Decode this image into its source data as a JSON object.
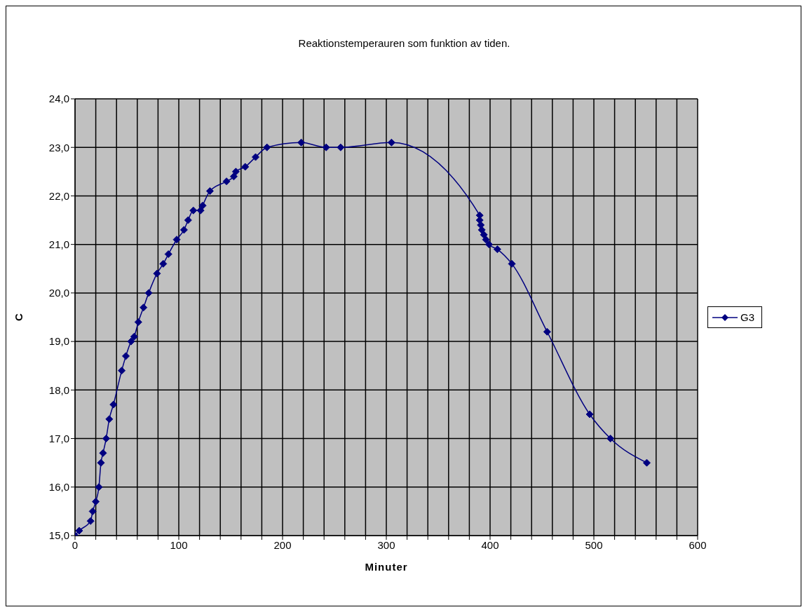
{
  "chart_data": {
    "type": "line",
    "title": "Reaktionstemperauren som  funktion av tiden.",
    "xlabel": "Minuter",
    "ylabel": "C",
    "x": [
      0,
      4,
      15,
      17,
      20,
      23,
      25,
      27,
      30,
      33,
      37,
      45,
      49,
      54,
      57,
      61,
      66,
      71,
      79,
      85,
      90,
      98,
      105,
      109,
      114,
      121,
      123,
      130,
      146,
      153,
      155,
      164,
      174,
      185,
      218,
      242,
      256,
      305,
      390,
      390,
      391,
      392,
      394,
      396,
      399,
      407,
      421,
      455,
      496,
      516,
      551
    ],
    "series": [
      {
        "name": "G3",
        "color": "#000080",
        "values": [
          15.0,
          15.1,
          15.3,
          15.5,
          15.7,
          16.0,
          16.5,
          16.7,
          17.0,
          17.4,
          17.7,
          18.4,
          18.7,
          19.0,
          19.1,
          19.4,
          19.7,
          20.0,
          20.4,
          20.6,
          20.8,
          21.1,
          21.3,
          21.5,
          21.7,
          21.7,
          21.8,
          22.1,
          22.3,
          22.4,
          22.5,
          22.6,
          22.8,
          23.0,
          23.1,
          23.0,
          23.0,
          23.1,
          21.6,
          21.5,
          21.4,
          21.3,
          21.2,
          21.1,
          21.0,
          20.9,
          20.6,
          19.2,
          17.5,
          17.0,
          16.5
        ]
      }
    ],
    "xlim": [
      0,
      600
    ],
    "xticks": [
      0,
      {
        "value": 20,
        "label": null
      },
      {
        "value": 40,
        "label": null
      },
      {
        "value": 60,
        "label": null
      },
      {
        "value": 80,
        "label": null
      },
      100,
      {
        "value": 120,
        "label": null
      },
      {
        "value": 140,
        "label": null
      },
      {
        "value": 160,
        "label": null
      },
      {
        "value": 180,
        "label": null
      },
      200,
      {
        "value": 220,
        "label": null
      },
      {
        "value": 240,
        "label": null
      },
      {
        "value": 260,
        "label": null
      },
      {
        "value": 280,
        "label": null
      },
      300,
      {
        "value": 320,
        "label": null
      },
      {
        "value": 340,
        "label": null
      },
      {
        "value": 360,
        "label": null
      },
      {
        "value": 380,
        "label": null
      },
      400,
      {
        "value": 420,
        "label": null
      },
      {
        "value": 440,
        "label": null
      },
      {
        "value": 460,
        "label": null
      },
      {
        "value": 480,
        "label": null
      },
      500,
      {
        "value": 520,
        "label": null
      },
      {
        "value": 540,
        "label": null
      },
      {
        "value": 560,
        "label": null
      },
      {
        "value": 580,
        "label": null
      },
      600
    ],
    "ylim": [
      15,
      24
    ],
    "yticks": [
      {
        "value": 15,
        "label": "15,0"
      },
      {
        "value": 16,
        "label": "16,0"
      },
      {
        "value": 17,
        "label": "17,0"
      },
      {
        "value": 18,
        "label": "18,0"
      },
      {
        "value": 19,
        "label": "19,0"
      },
      {
        "value": 20,
        "label": "20,0"
      },
      {
        "value": 21,
        "label": "21,0"
      },
      {
        "value": 22,
        "label": "22,0"
      },
      {
        "value": 23,
        "label": "23,0"
      },
      {
        "value": 24,
        "label": "24,0"
      }
    ],
    "grid": true,
    "legend": "right",
    "marker": "diamond",
    "line_style": "solid"
  }
}
